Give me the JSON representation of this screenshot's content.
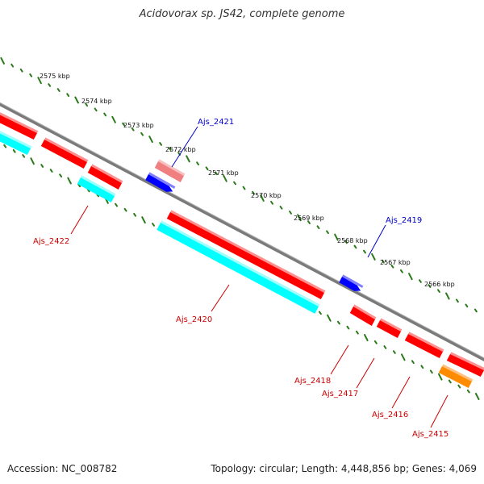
{
  "title": "Acidovorax sp. JS42, complete genome",
  "footer": {
    "accession": "Accession: NC_008782",
    "topology": "Topology: circular; Length: 4,448,856 bp; Genes: 4,069"
  },
  "colors": {
    "backbone": "#888888",
    "tick": "#2a7a1a",
    "red_gene": "#ff0000",
    "blue_gene": "#0000ff",
    "cyan_gene": "#00ffff",
    "pink_gene": "#f08080",
    "orange_gene": "#ff8c00",
    "red_label": "#cc0000",
    "blue_label": "#0000cc"
  },
  "scale_labels": [
    "2575 kbp",
    "2574 kbp",
    "2573 kbp",
    "2572 kbp",
    "2571 kbp",
    "2570 kbp",
    "2569 kbp",
    "2568 kbp",
    "2567 kbp",
    "2566 kbp"
  ],
  "gene_labels": [
    {
      "name": "Ajs_2421",
      "color": "blue"
    },
    {
      "name": "Ajs_2419",
      "color": "blue"
    },
    {
      "name": "Ajs_2422",
      "color": "red"
    },
    {
      "name": "Ajs_2420",
      "color": "red"
    },
    {
      "name": "Ajs_2418",
      "color": "red"
    },
    {
      "name": "Ajs_2417",
      "color": "red"
    },
    {
      "name": "Ajs_2416",
      "color": "red"
    },
    {
      "name": "Ajs_2415",
      "color": "red"
    }
  ]
}
